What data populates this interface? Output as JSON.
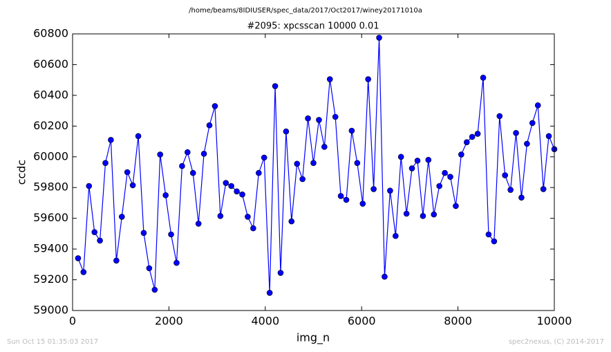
{
  "chart_data": {
    "type": "line",
    "suptitle": "/home/beams/8IDIUSER/spec_data/2017/Oct2017/winey20171010a",
    "title": "#2095: xpcsscan 10000 0.01",
    "x_label": "img_n",
    "y_label": "ccdc",
    "footer_left": "Sun Oct 15 01:35:03 2017",
    "footer_right": "spec2nexus, (C) 2014-2017",
    "xlim": [
      0,
      10000
    ],
    "xticks": [
      0,
      2000,
      4000,
      6000,
      8000,
      10000
    ],
    "ylim": [
      59000,
      60800
    ],
    "yticks": [
      59000,
      59200,
      59400,
      59600,
      59800,
      60000,
      60200,
      60400,
      60600,
      60800
    ],
    "x": [
      114,
      227,
      341,
      455,
      568,
      682,
      795,
      909,
      1023,
      1136,
      1250,
      1364,
      1477,
      1591,
      1705,
      1818,
      1932,
      2045,
      2159,
      2273,
      2386,
      2500,
      2614,
      2727,
      2841,
      2955,
      3068,
      3182,
      3295,
      3409,
      3523,
      3636,
      3750,
      3864,
      3977,
      4091,
      4205,
      4318,
      4432,
      4545,
      4659,
      4773,
      4886,
      5000,
      5114,
      5227,
      5341,
      5455,
      5568,
      5682,
      5795,
      5909,
      6023,
      6136,
      6250,
      6364,
      6477,
      6591,
      6705,
      6818,
      6932,
      7045,
      7159,
      7273,
      7386,
      7500,
      7614,
      7727,
      7841,
      7955,
      8068,
      8182,
      8295,
      8409,
      8523,
      8636,
      8750,
      8864,
      8977,
      9091,
      9205,
      9318,
      9432,
      9545,
      9659,
      9773,
      9886,
      10000
    ],
    "series": [
      {
        "color": "#0000ff",
        "values": [
          59340,
          59250,
          59810,
          59510,
          59455,
          59960,
          60110,
          59325,
          59610,
          59900,
          59815,
          60135,
          59505,
          59275,
          59135,
          60015,
          59750,
          59495,
          59310,
          59940,
          60030,
          59895,
          59565,
          60020,
          60205,
          60330,
          59615,
          59830,
          59810,
          59775,
          59755,
          59610,
          59535,
          59895,
          59995,
          59115,
          60460,
          59245,
          60165,
          59580,
          59955,
          59855,
          60250,
          59960,
          60240,
          60065,
          60505,
          60260,
          59745,
          59720,
          60170,
          59960,
          59695,
          60505,
          59790,
          60775,
          59220,
          59780,
          59485,
          60000,
          59630,
          59925,
          59975,
          59615,
          59980,
          59625,
          59810,
          59895,
          59870,
          59680,
          60015,
          60095,
          60130,
          60150,
          60515,
          59495,
          59450,
          60265,
          59880,
          59785,
          60155,
          59735,
          60085,
          60220,
          60335,
          59790,
          60135,
          60050
        ]
      }
    ]
  }
}
